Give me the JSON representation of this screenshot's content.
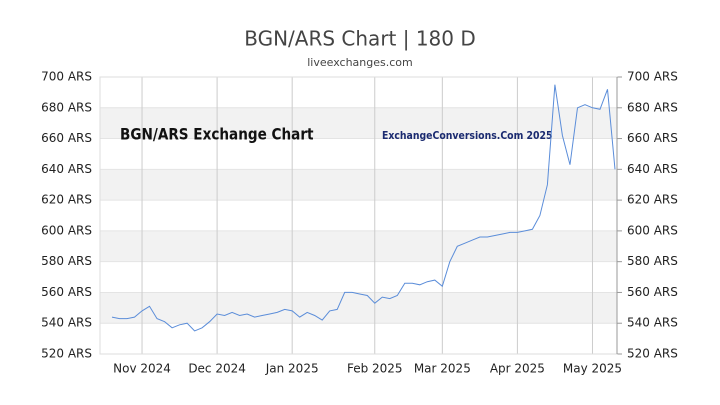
{
  "chart_data": {
    "type": "line",
    "title": "BGN/ARS Chart | 180 D",
    "subtitle": "liveexchanges.com",
    "annotations": [
      "BGN/ARS Exchange Chart",
      "ExchangeConversions.Com 2025"
    ],
    "categories": [
      null,
      null,
      null,
      null,
      "Nov 2024",
      null,
      null,
      null,
      null,
      null,
      null,
      null,
      null,
      null,
      "Dec 2024",
      null,
      null,
      null,
      null,
      null,
      null,
      null,
      null,
      null,
      "Jan 2025",
      null,
      null,
      null,
      null,
      null,
      null,
      null,
      null,
      null,
      null,
      "Feb 2025",
      null,
      null,
      null,
      null,
      null,
      null,
      null,
      null,
      "Mar 2025",
      null,
      null,
      null,
      null,
      null,
      null,
      null,
      null,
      null,
      "Apr 2025",
      null,
      null,
      null,
      null,
      null,
      null,
      null,
      null,
      null,
      "May 2025",
      null,
      null,
      null
    ],
    "series": [
      {
        "name": "BGN/ARS",
        "color": "#5b8dd9",
        "values": [
          544,
          543,
          543,
          544,
          548,
          551,
          543,
          541,
          537,
          539,
          540,
          535,
          537,
          541,
          546,
          545,
          547,
          545,
          546,
          544,
          545,
          546,
          547,
          549,
          548,
          544,
          547,
          545,
          542,
          548,
          549,
          560,
          560,
          559,
          558,
          553,
          557,
          556,
          558,
          566,
          566,
          565,
          567,
          568,
          564,
          580,
          590,
          592,
          594,
          596,
          596,
          597,
          598,
          599,
          599,
          600,
          601,
          610,
          630,
          695,
          662,
          643,
          680,
          682,
          680,
          679,
          692,
          640
        ]
      }
    ],
    "ylim": [
      520,
      700
    ],
    "yticks": [
      {
        "value": 520,
        "label": "520 ARS"
      },
      {
        "value": 540,
        "label": "540 ARS"
      },
      {
        "value": 560,
        "label": "560 ARS"
      },
      {
        "value": 580,
        "label": "580 ARS"
      },
      {
        "value": 600,
        "label": "600 ARS"
      },
      {
        "value": 620,
        "label": "620 ARS"
      },
      {
        "value": 640,
        "label": "640 ARS"
      },
      {
        "value": 660,
        "label": "660 ARS"
      },
      {
        "value": 680,
        "label": "680 ARS"
      },
      {
        "value": 700,
        "label": "700 ARS"
      }
    ],
    "y2lim": [
      520,
      700
    ],
    "y2ticks": [
      {
        "value": 520,
        "label": "520 ARS"
      },
      {
        "value": 540,
        "label": "540 ARS"
      },
      {
        "value": 560,
        "label": "560 ARS"
      },
      {
        "value": 580,
        "label": "580 ARS"
      },
      {
        "value": 600,
        "label": "600 ARS"
      },
      {
        "value": 620,
        "label": "620 ARS"
      },
      {
        "value": 640,
        "label": "640 ARS"
      },
      {
        "value": 660,
        "label": "660 ARS"
      },
      {
        "value": 680,
        "label": "680 ARS"
      },
      {
        "value": 700,
        "label": "700 ARS"
      }
    ],
    "grid": true,
    "bands": true
  }
}
